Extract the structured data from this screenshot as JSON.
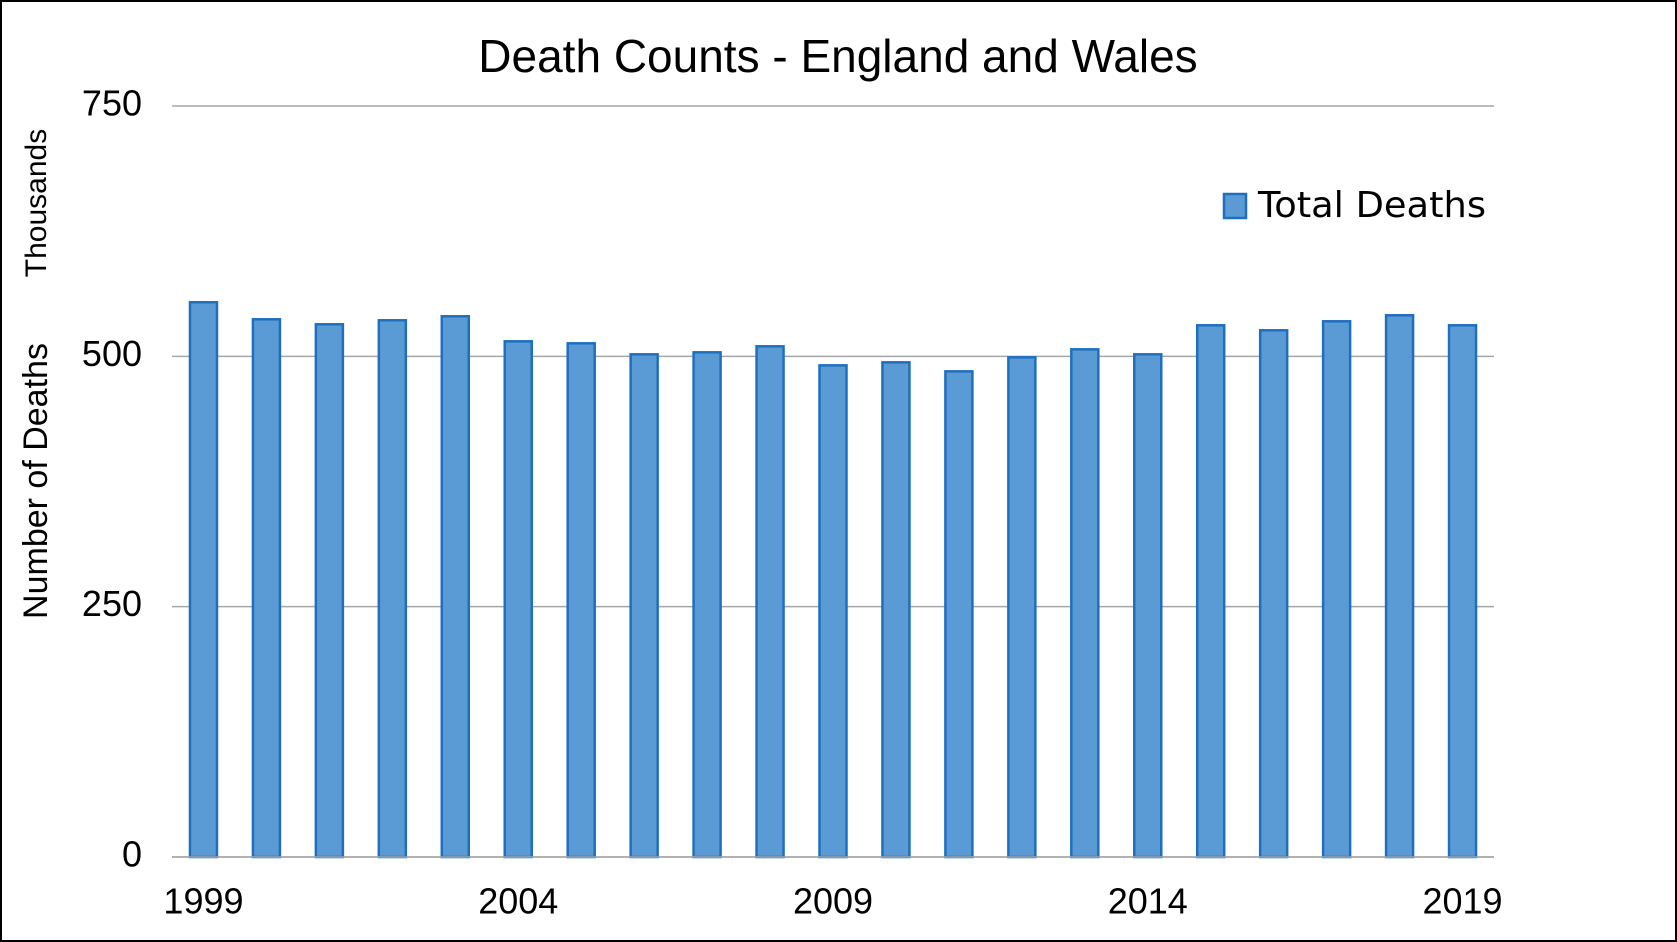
{
  "chart_data": {
    "type": "bar",
    "title": "Death Counts - England and Wales",
    "y_label": "Number of Deaths",
    "y_unit_label": "Thousands",
    "categories": [
      "1999",
      null,
      null,
      null,
      null,
      "2004",
      null,
      null,
      null,
      null,
      "2009",
      null,
      null,
      null,
      null,
      "2014",
      null,
      null,
      null,
      null,
      "2019"
    ],
    "series": [
      {
        "name": "Total Deaths",
        "color": "#5b9bd5",
        "edge": "#1f6fbf",
        "values": [
          554,
          537,
          532,
          536,
          540,
          515,
          513,
          502,
          504,
          510,
          491,
          494,
          485,
          499,
          507,
          502,
          531,
          526,
          535,
          541,
          531
        ]
      }
    ],
    "ylim": [
      0,
      750
    ],
    "yticks": [
      0,
      250,
      500,
      750
    ],
    "grid": true,
    "legend": "upper right"
  }
}
